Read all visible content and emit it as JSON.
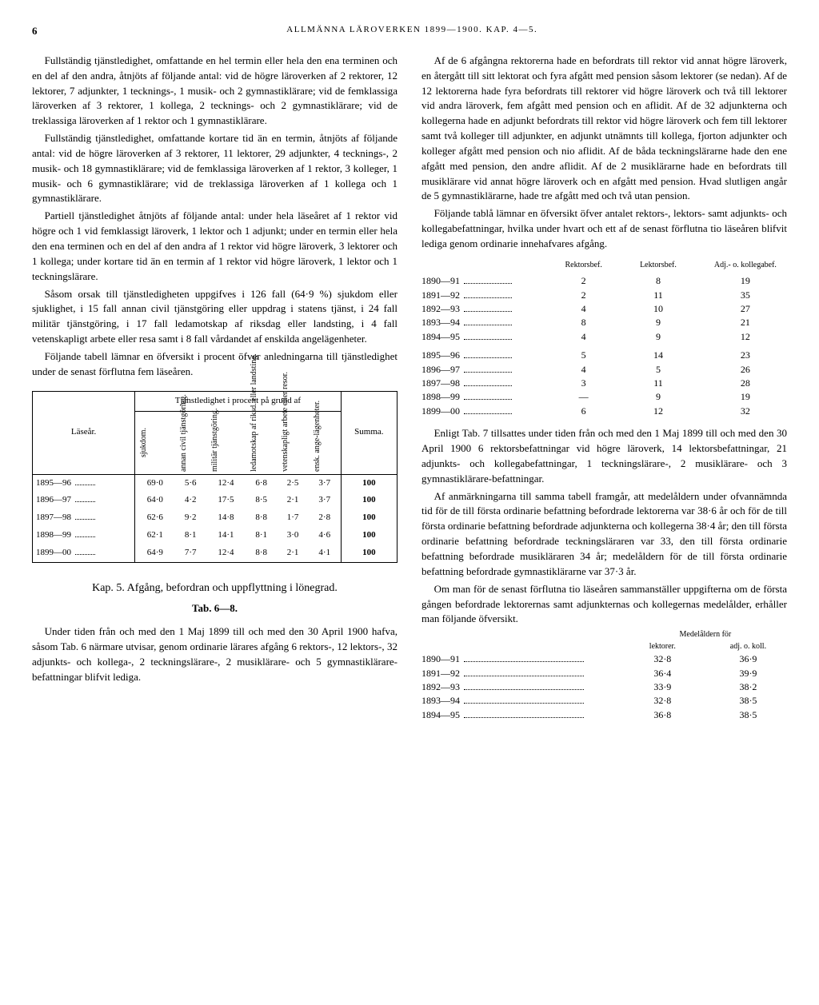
{
  "page_number": "6",
  "running_title": "ALLMÄNNA LÄROVERKEN 1899—1900. KAP. 4—5.",
  "left_col": {
    "p1": "Fullständig tjänstledighet, omfattande en hel termin eller hela den ena terminen och en del af den andra, åtnjöts af följande antal: vid de högre läroverken af 2 rektorer, 12 lektorer, 7 adjunkter, 1 tecknings-, 1 musik- och 2 gymnastiklärare; vid de femklassiga läroverken af 3 rektorer, 1 kollega, 2 tecknings- och 2 gymnastiklärare; vid de treklassiga läroverken af 1 rektor och 1 gymnastiklärare.",
    "p2": "Fullständig tjänstledighet, omfattande kortare tid än en termin, åtnjöts af följande antal: vid de högre läroverken af 3 rektorer, 11 lektorer, 29 adjunkter, 4 tecknings-, 2 musik- och 18 gymnastiklärare; vid de femklassiga läroverken af 1 rektor, 3 kolleger, 1 musik- och 6 gymnastiklärare; vid de treklassiga läroverken af 1 kollega och 1 gymnastiklärare.",
    "p3": "Partiell tjänstledighet åtnjöts af följande antal: under hela läseåret af 1 rektor vid högre och 1 vid femklassigt läroverk, 1 lektor och 1 adjunkt; under en termin eller hela den ena terminen och en del af den andra af 1 rektor vid högre läroverk, 3 lektorer och 1 kollega; under kortare tid än en termin af 1 rektor vid högre läroverk, 1 lektor och 1 teckningslärare.",
    "p4": "Såsom orsak till tjänstledigheten uppgifves i 126 fall (64·9 %) sjukdom eller sjuklighet, i 15 fall annan civil tjänstgöring eller uppdrag i statens tjänst, i 24 fall militär tjänstgöring, i 17 fall ledamotskap af riksdag eller landsting, i 4 fall vetenskapligt arbete eller resa samt i 8 fall vårdandet af enskilda angelägenheter.",
    "p5": "Följande tabell lämnar en öfversikt i procent öfver anledningarna till tjänstledighet under de senast förflutna fem läseåren.",
    "chapter": "Kap. 5.  Afgång, befordran och uppflyttning i lönegrad.",
    "tab_ref": "Tab. 6—8.",
    "p6": "Under tiden från och med den 1 Maj 1899 till och med den 30 April 1900 hafva, såsom Tab. 6 närmare utvisar, genom ordinarie lärares afgång 6 rektors-, 12 lektors-, 32 adjunkts- och kollega-, 2 teckningslärare-, 2 musiklärare- och 5 gymnastiklärare-befattningar blifvit lediga."
  },
  "right_col": {
    "p1": "Af de 6 afgångna rektorerna hade en befordrats till rektor vid annat högre läroverk, en återgått till sitt lektorat och fyra afgått med pension såsom lektorer (se nedan). Af de 12 lektorerna hade fyra befordrats till rektorer vid högre läroverk och två till lektorer vid andra läroverk, fem afgått med pension och en aflidit. Af de 32 adjunkterna och kollegerna hade en adjunkt befordrats till rektor vid högre läroverk och fem till lektorer samt två kolleger till adjunkter, en adjunkt utnämnts till kollega, fjorton adjunkter och kolleger afgått med pension och nio aflidit. Af de båda teckningslärarne hade den ene afgått med pension, den andre aflidit. Af de 2 musiklärarne hade en befordrats till musiklärare vid annat högre läroverk och en afgått med pension. Hvad slutligen angår de 5 gymnastiklärarne, hade tre afgått med och två utan pension.",
    "p2": "Följande tablå lämnar en öfversikt öfver antalet rektors-, lektors- samt adjunkts- och kollegabefattningar, hvilka under hvart och ett af de senast förflutna tio läseåren blifvit lediga genom ordinarie innehafvares afgång.",
    "p3": "Enligt Tab. 7 tillsattes under tiden från och med den 1 Maj 1899 till och med den 30 April 1900 6 rektorsbefattningar vid högre läroverk, 14 lektorsbefattningar, 21 adjunkts- och kollegabefattningar, 1 teckningslärare-, 2 musiklärare- och 3 gymnastiklärare-befattningar.",
    "p4": "Af anmärkningarna till samma tabell framgår, att medelåldern under ofvannämnda tid för de till första ordinarie befattning befordrade lektorerna var 38·6 år och för de till första ordinarie befattning befordrade adjunkterna och kollegerna 38·4 år; den till första ordinarie befattning befordrade teckningsläraren var 33, den till första ordinarie befattning befordrade musikläraren 34 år; medelåldern för de till första ordinarie befattning befordrade gymnastiklärarne var 37·3 år.",
    "p5": "Om man för de senast förflutna tio läseåren sammanställer uppgifterna om de första gången befordrade lektorernas samt adjunkternas och kollegernas medelålder, erhåller man följande öfversikt."
  },
  "percent_table": {
    "header_group": "Tjänstledighet i procent på grund af",
    "col_labels": [
      "Läseår.",
      "sjukdom.",
      "annan civil tjänstgöring.",
      "militär tjänstgöring.",
      "ledamotskap af riksd. eller landsting.",
      "vetenskapligt arbete eller resor.",
      "ensk. ange-lägenheter.",
      "Summa."
    ],
    "rows": [
      {
        "year": "1895—96",
        "vals": [
          "69·0",
          "5·6",
          "12·4",
          "6·8",
          "2·5",
          "3·7",
          "100"
        ]
      },
      {
        "year": "1896—97",
        "vals": [
          "64·0",
          "4·2",
          "17·5",
          "8·5",
          "2·1",
          "3·7",
          "100"
        ]
      },
      {
        "year": "1897—98",
        "vals": [
          "62·6",
          "9·2",
          "14·8",
          "8·8",
          "1·7",
          "2·8",
          "100"
        ]
      },
      {
        "year": "1898—99",
        "vals": [
          "62·1",
          "8·1",
          "14·1",
          "8·1",
          "3·0",
          "4·6",
          "100"
        ]
      },
      {
        "year": "1899—00",
        "vals": [
          "64·9",
          "7·7",
          "12·4",
          "8·8",
          "2·1",
          "4·1",
          "100"
        ]
      }
    ]
  },
  "vacancy_table": {
    "headers": [
      "Rektorsbef.",
      "Lektorsbef.",
      "Adj.- o. kollegabef."
    ],
    "rows": [
      {
        "year": "1890—91",
        "vals": [
          "2",
          "8",
          "19"
        ]
      },
      {
        "year": "1891—92",
        "vals": [
          "2",
          "11",
          "35"
        ]
      },
      {
        "year": "1892—93",
        "vals": [
          "4",
          "10",
          "27"
        ]
      },
      {
        "year": "1893—94",
        "vals": [
          "8",
          "9",
          "21"
        ]
      },
      {
        "year": "1894—95",
        "vals": [
          "4",
          "9",
          "12"
        ]
      },
      {
        "year": "1895—96",
        "vals": [
          "5",
          "14",
          "23"
        ]
      },
      {
        "year": "1896—97",
        "vals": [
          "4",
          "5",
          "26"
        ]
      },
      {
        "year": "1897—98",
        "vals": [
          "3",
          "11",
          "28"
        ]
      },
      {
        "year": "1898—99",
        "vals": [
          "—",
          "9",
          "19"
        ]
      },
      {
        "year": "1899—00",
        "vals": [
          "6",
          "12",
          "32"
        ]
      }
    ]
  },
  "age_table": {
    "caption": "Medelåldern för",
    "headers": [
      "lektorer.",
      "adj. o. koll."
    ],
    "rows": [
      {
        "year": "1890—91",
        "vals": [
          "32·8",
          "36·9"
        ]
      },
      {
        "year": "1891—92",
        "vals": [
          "36·4",
          "39·9"
        ]
      },
      {
        "year": "1892—93",
        "vals": [
          "33·9",
          "38·2"
        ]
      },
      {
        "year": "1893—94",
        "vals": [
          "32·8",
          "38·5"
        ]
      },
      {
        "year": "1894—95",
        "vals": [
          "36·8",
          "38·5"
        ]
      }
    ]
  }
}
